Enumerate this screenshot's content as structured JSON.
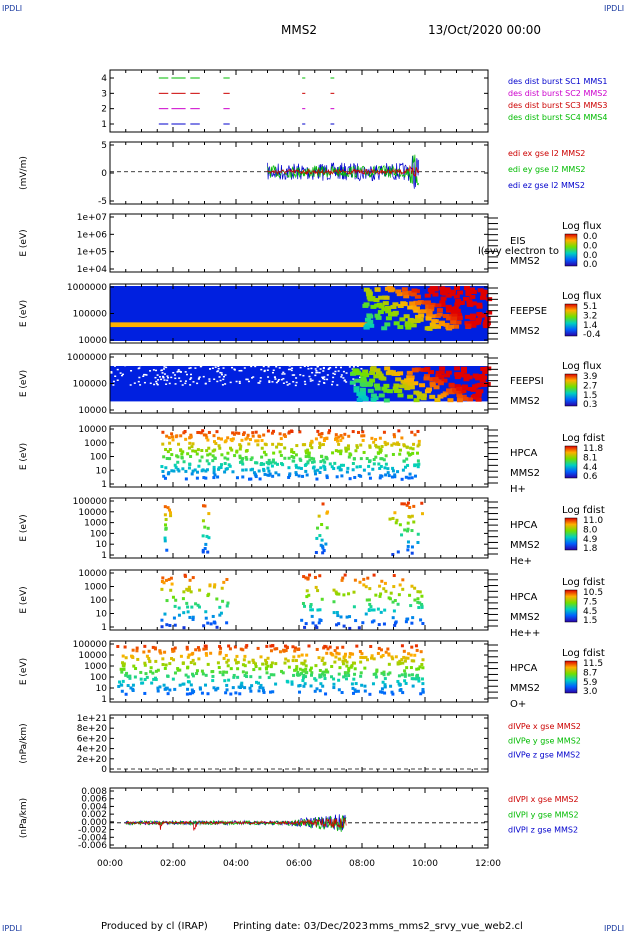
{
  "header": {
    "corner_tl": "IPDLI",
    "corner_tr": "IPDLI",
    "corner_bl": "IPDLI",
    "corner_br": "IPDLI",
    "title": "MMS2",
    "date": "13/Oct/2020 00:00"
  },
  "footer": {
    "produced": "Produced by cl (IRAP)",
    "printing": "Printing date: 03/Dec/2023",
    "file": "mms_mms2_srvy_vue_web2.cl"
  },
  "x_ticks": [
    "00:00",
    "02:00",
    "04:00",
    "06:00",
    "08:00",
    "10:00",
    "12:00"
  ],
  "colors": {
    "red": "#cc0000",
    "magenta": "#cc00cc",
    "green": "#00bb00",
    "blue": "#0000cc"
  },
  "chart_data": [
    {
      "id": "burst",
      "type": "line",
      "ylabel": "",
      "yticks": [
        "1",
        "2",
        "3",
        "4"
      ],
      "legend": [
        {
          "text": "des dist burst SC1 MMS1",
          "color": "#0000cc"
        },
        {
          "text": "des dist burst SC2 MMS2",
          "color": "#cc00cc"
        },
        {
          "text": "des dist burst SC3 MMS3",
          "color": "#cc0000"
        },
        {
          "text": "des dist burst SC4 MMS4",
          "color": "#00bb00"
        }
      ]
    },
    {
      "id": "edi",
      "type": "line",
      "ylabel": "(mV/m)",
      "yticks": [
        "5",
        "0",
        "-5"
      ],
      "legend": [
        {
          "text": "edi ex gse l2 MMS2",
          "color": "#cc0000"
        },
        {
          "text": "edi ey gse l2 MMS2",
          "color": "#00bb00"
        },
        {
          "text": "edi ez gse l2 MMS2",
          "color": "#0000cc"
        }
      ]
    },
    {
      "id": "eis",
      "type": "heatmap",
      "ylabel": "E (eV)",
      "yticks": [
        "1e+07",
        "1e+06",
        "1e+05",
        "1e+04"
      ],
      "label_lines": [
        "EIS",
        "MMS2"
      ],
      "overlay_text": "l(svy electron to",
      "cbar_title": "Log flux",
      "cbar_values": [
        "0.0",
        "0.0",
        "0.0",
        "0.0"
      ]
    },
    {
      "id": "feepse",
      "type": "heatmap",
      "ylabel": "E (eV)",
      "yticks": [
        "1000000",
        "100000",
        "10000"
      ],
      "label_lines": [
        "FEEPSE",
        "MMS2"
      ],
      "cbar_title": "Log flux",
      "cbar_values": [
        "5.1",
        "3.2",
        "1.4",
        "-0.4"
      ]
    },
    {
      "id": "feepsi",
      "type": "heatmap",
      "ylabel": "E (eV)",
      "yticks": [
        "1000000",
        "100000",
        "10000"
      ],
      "label_lines": [
        "FEEPSI",
        "MMS2"
      ],
      "cbar_title": "Log flux",
      "cbar_values": [
        "3.9",
        "2.7",
        "1.5",
        "0.3"
      ]
    },
    {
      "id": "hpca_h",
      "type": "heatmap",
      "ylabel": "E (eV)",
      "yticks": [
        "10000",
        "1000",
        "100",
        "10",
        "1"
      ],
      "label_lines": [
        "HPCA",
        "MMS2",
        "H+"
      ],
      "cbar_title": "Log fdist",
      "cbar_values": [
        "11.8",
        "8.1",
        "4.4",
        "0.6"
      ]
    },
    {
      "id": "hpca_he",
      "type": "heatmap",
      "ylabel": "E (eV)",
      "yticks": [
        "100000",
        "10000",
        "1000",
        "100",
        "10",
        "1"
      ],
      "label_lines": [
        "HPCA",
        "MMS2",
        "He+"
      ],
      "cbar_title": "Log fdist",
      "cbar_values": [
        "11.0",
        "8.0",
        "4.9",
        "1.8"
      ]
    },
    {
      "id": "hpca_hepp",
      "type": "heatmap",
      "ylabel": "E (eV)",
      "yticks": [
        "10000",
        "1000",
        "100",
        "10",
        "1"
      ],
      "label_lines": [
        "HPCA",
        "MMS2",
        "He++"
      ],
      "cbar_title": "Log fdist",
      "cbar_values": [
        "10.5",
        "7.5",
        "4.5",
        "1.5"
      ]
    },
    {
      "id": "hpca_o",
      "type": "heatmap",
      "ylabel": "E (eV)",
      "yticks": [
        "100000",
        "10000",
        "1000",
        "100",
        "10",
        "1"
      ],
      "label_lines": [
        "HPCA",
        "MMS2",
        "O+"
      ],
      "cbar_title": "Log fdist",
      "cbar_values": [
        "11.5",
        "8.7",
        "5.9",
        "3.0"
      ]
    },
    {
      "id": "divpe",
      "type": "line",
      "ylabel": "(nPa/km)",
      "yticks": [
        "1e+21",
        "8e+20",
        "6e+20",
        "4e+20",
        "2e+20",
        "0"
      ],
      "legend": [
        {
          "text": "dIVPe x gse MMS2",
          "color": "#cc0000"
        },
        {
          "text": "dIVPe y gse MMS2",
          "color": "#00bb00"
        },
        {
          "text": "dIVPe z gse MMS2",
          "color": "#0000cc"
        }
      ]
    },
    {
      "id": "divpi",
      "type": "line",
      "ylabel": "(nPa/km)",
      "yticks": [
        "0.008",
        "0.006",
        "0.004",
        "0.002",
        "0.000",
        "-0.002",
        "-0.004",
        "-0.006"
      ],
      "legend": [
        {
          "text": "dIVPI x gse MMS2",
          "color": "#cc0000"
        },
        {
          "text": "dIVPI y gse MMS2",
          "color": "#00bb00"
        },
        {
          "text": "dIVPI z gse MMS2",
          "color": "#0000cc"
        }
      ]
    }
  ]
}
